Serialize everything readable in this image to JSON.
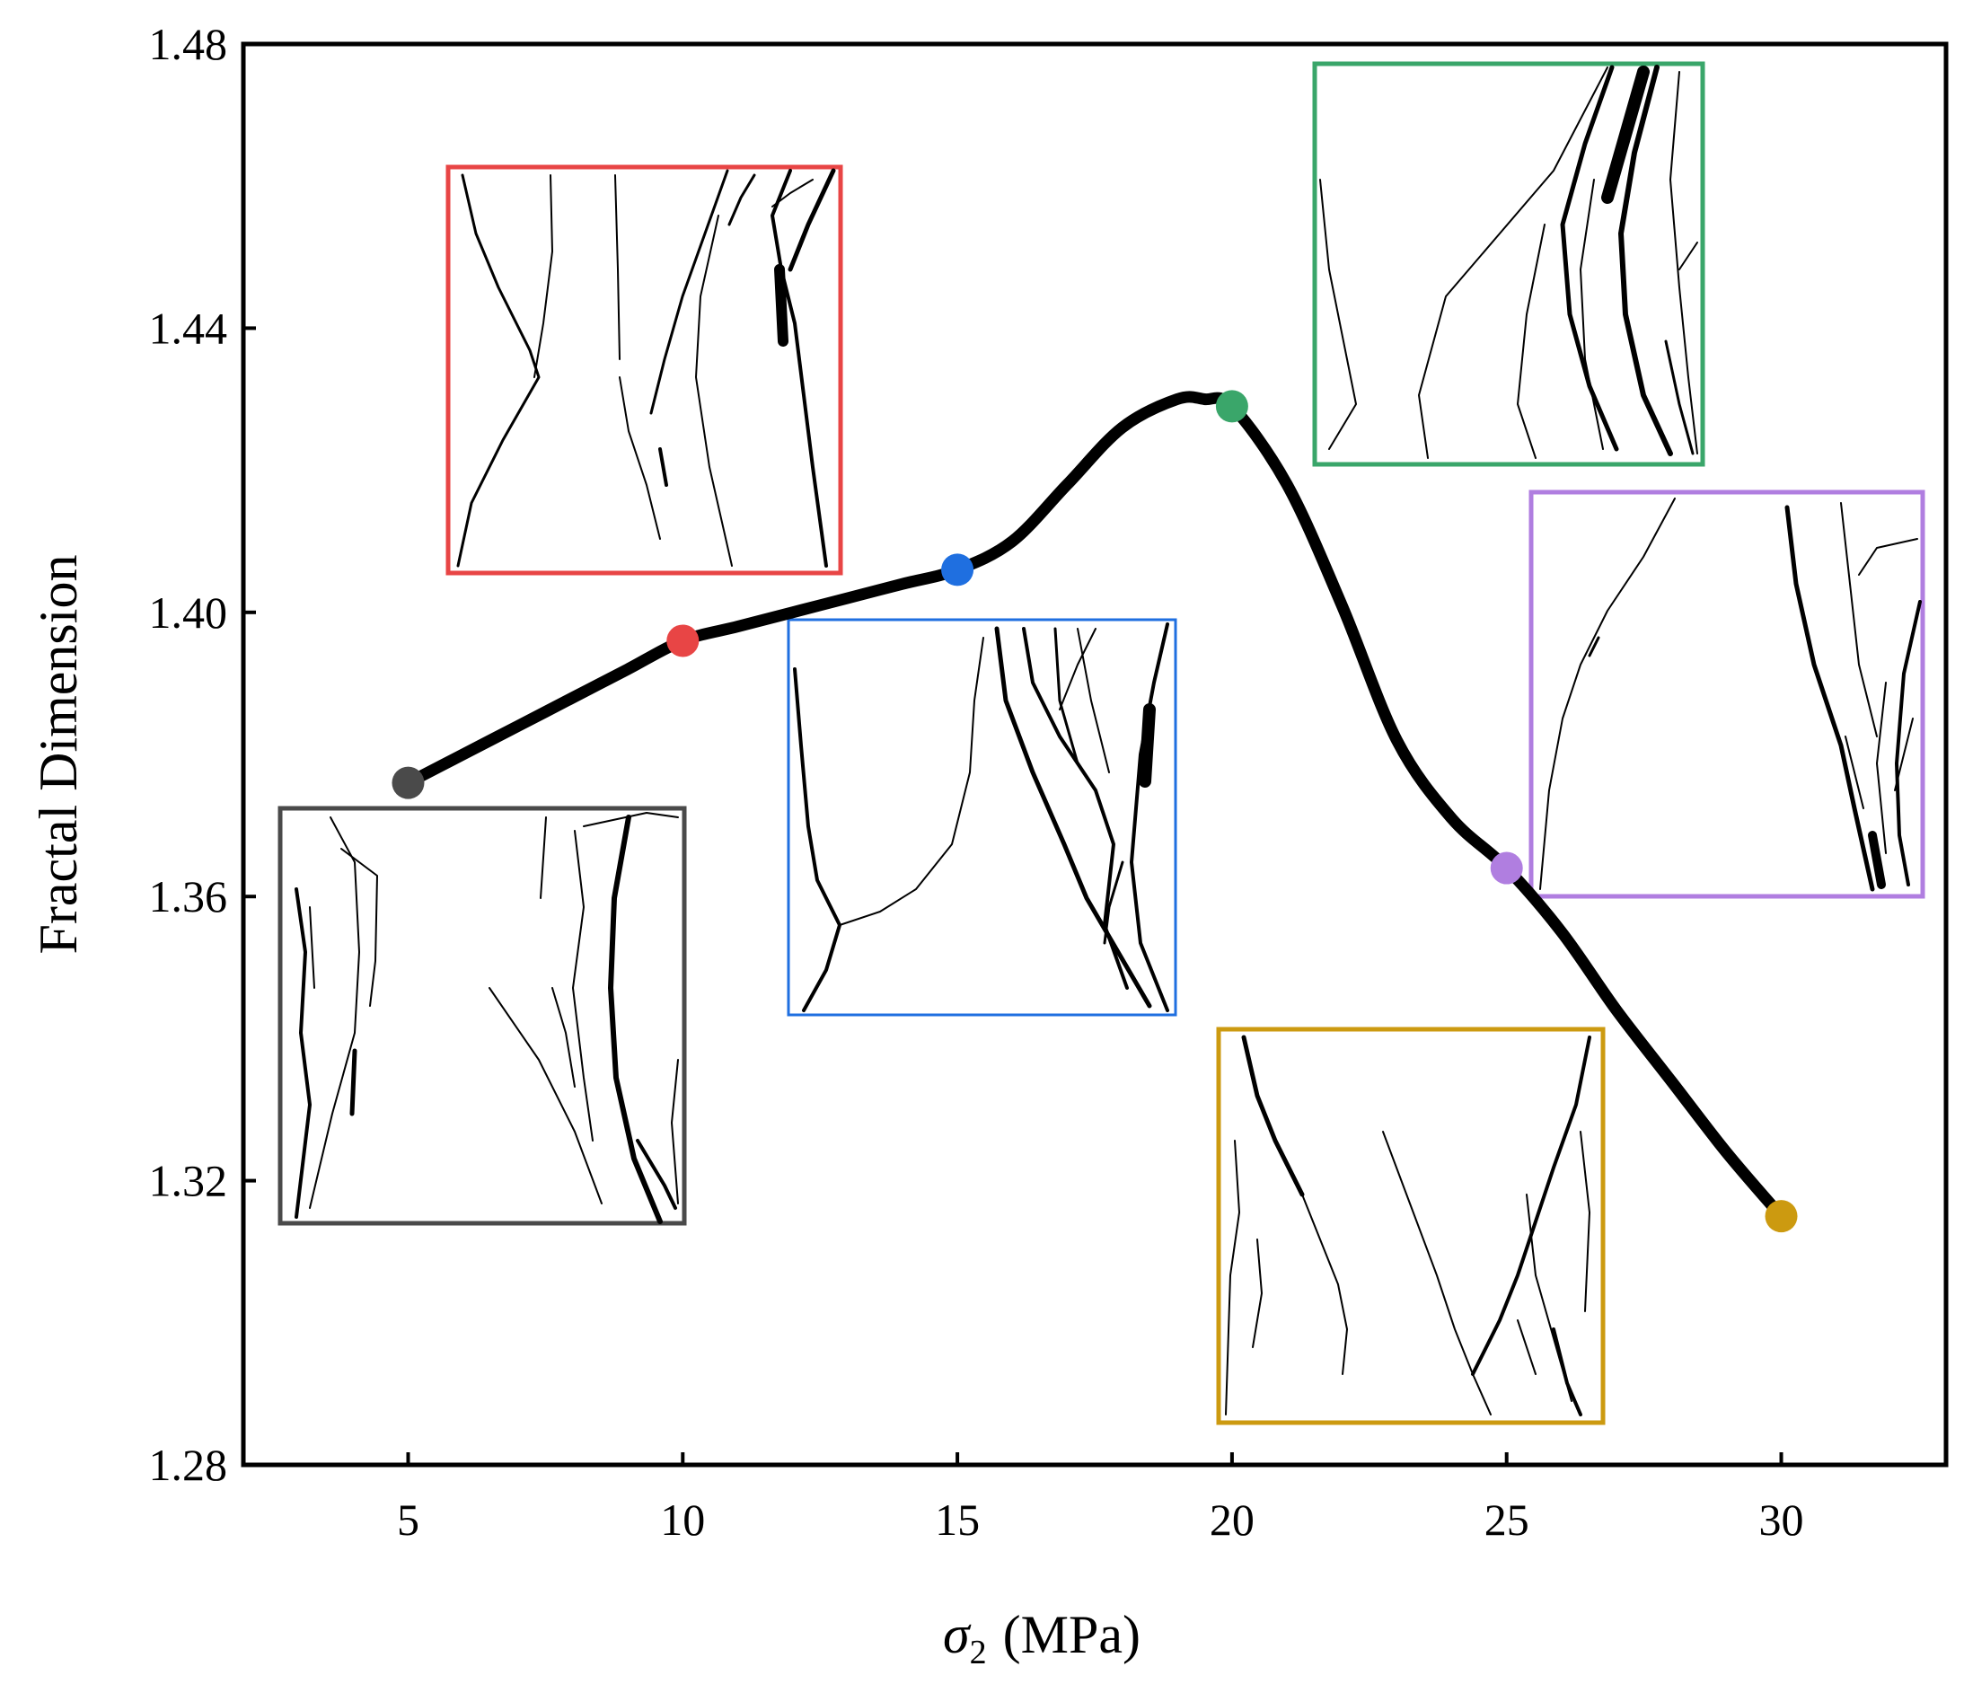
{
  "chart_data": {
    "type": "line",
    "title": "",
    "xlabel_symbol": "σ",
    "xlabel_subscript": "2",
    "xlabel_unit": "(MPa)",
    "ylabel": "Fractal Dimension",
    "xlim": [
      2.0,
      33.0
    ],
    "ylim": [
      1.28,
      1.48
    ],
    "xticks": [
      5,
      10,
      15,
      20,
      25,
      30
    ],
    "xtick_labels": [
      "5",
      "10",
      "15",
      "20",
      "25",
      "30"
    ],
    "yticks": [
      1.28,
      1.32,
      1.36,
      1.4,
      1.44,
      1.48
    ],
    "ytick_labels": [
      "1.28",
      "1.32",
      "1.36",
      "1.40",
      "1.44",
      "1.48"
    ],
    "grid": false,
    "curve": {
      "x": [
        5,
        6,
        7,
        8,
        9,
        10,
        11,
        12,
        13,
        14,
        15,
        16,
        17,
        18,
        19,
        19.5,
        20,
        21,
        22,
        23,
        24,
        25,
        26,
        27,
        28,
        29,
        30
      ],
      "y": [
        1.376,
        1.38,
        1.384,
        1.388,
        1.392,
        1.396,
        1.398,
        1.4,
        1.402,
        1.404,
        1.406,
        1.41,
        1.418,
        1.426,
        1.43,
        1.43,
        1.429,
        1.418,
        1.401,
        1.382,
        1.371,
        1.364,
        1.355,
        1.344,
        1.334,
        1.324,
        1.315
      ]
    },
    "points": [
      {
        "x": 5,
        "y": 1.376,
        "color": "#4a4a4a"
      },
      {
        "x": 10,
        "y": 1.396,
        "color": "#e84545"
      },
      {
        "x": 15,
        "y": 1.406,
        "color": "#1f6fe0"
      },
      {
        "x": 20,
        "y": 1.429,
        "color": "#3aa66a"
      },
      {
        "x": 25,
        "y": 1.364,
        "color": "#b07ee0"
      },
      {
        "x": 30,
        "y": 1.315,
        "color": "#cc9a10"
      }
    ],
    "insets": [
      {
        "sigma2": 5,
        "frame_color": "#4a4a4a"
      },
      {
        "sigma2": 10,
        "frame_color": "#e84545"
      },
      {
        "sigma2": 15,
        "frame_color": "#1f6fe0"
      },
      {
        "sigma2": 20,
        "frame_color": "#3aa66a"
      },
      {
        "sigma2": 25,
        "frame_color": "#b07ee0"
      },
      {
        "sigma2": 30,
        "frame_color": "#cc9a10"
      }
    ]
  }
}
